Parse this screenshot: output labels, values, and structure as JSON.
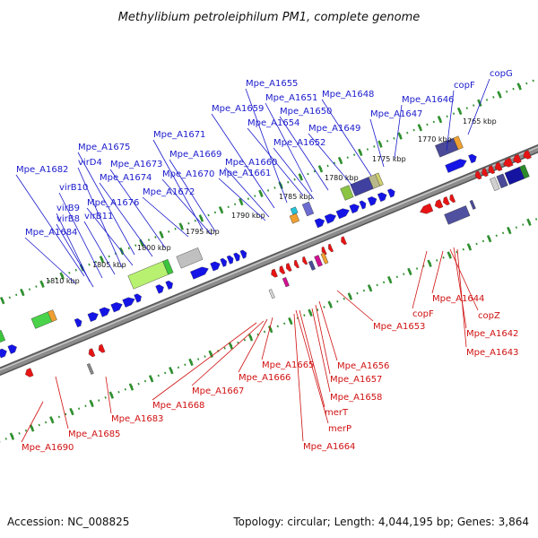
{
  "header": {
    "title": "Methylibium petroleiphilum PM1, complete genome"
  },
  "footer": {
    "accession": "Accession: NC_008825",
    "summary": "Topology: circular; Length: 4,044,195 bp; Genes: 3,864"
  },
  "colors": {
    "forward_cds": "#1414e6",
    "reverse_cds": "#e61414",
    "backbone": "#8c8c8c",
    "ruler_dots": "#2f8f2f",
    "top_label": "#1a1acc",
    "bottom_label": "#d01010"
  },
  "scale_labels": [
    "1765 kbp",
    "1770 kbp",
    "1775 kbp",
    "1780 kbp",
    "1785 kbp",
    "1790 kbp",
    "1795 kbp",
    "1800 kbp",
    "1805 kbp",
    "1810 kbp"
  ],
  "top_labels": [
    "copG",
    "copF",
    "Mpe_A1646",
    "Mpe_A1647",
    "Mpe_A1648",
    "Mpe_A1649",
    "Mpe_A1650",
    "Mpe_A1651",
    "Mpe_A1652",
    "Mpe_A1654",
    "Mpe_A1655",
    "Mpe_A1659",
    "Mpe_A1660",
    "Mpe_A1661",
    "Mpe_A1669",
    "Mpe_A1670",
    "Mpe_A1671",
    "Mpe_A1672",
    "Mpe_A1673",
    "Mpe_A1674",
    "Mpe_A1675",
    "Mpe_A1676",
    "virD4",
    "virB10",
    "virB11",
    "virB9",
    "virB8",
    "Mpe_A1682",
    "Mpe_A1684"
  ],
  "bottom_labels": [
    "Mpe_A1644",
    "copZ",
    "Mpe_A1642",
    "Mpe_A1643",
    "copF",
    "Mpe_A1653",
    "Mpe_A1656",
    "Mpe_A1657",
    "Mpe_A1658",
    "merT",
    "merP",
    "Mpe_A1664",
    "Mpe_A1665",
    "Mpe_A1666",
    "Mpe_A1667",
    "Mpe_A1668",
    "Mpe_A1683",
    "Mpe_A1685",
    "Mpe_A1690"
  ]
}
